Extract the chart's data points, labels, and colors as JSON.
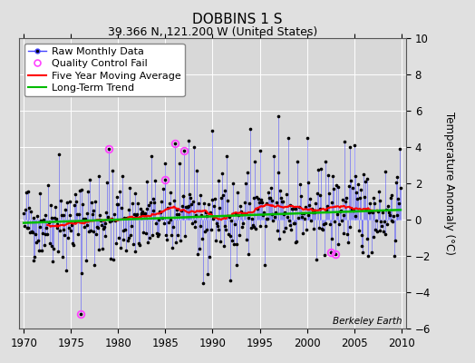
{
  "title": "DOBBINS 1 S",
  "subtitle": "39.366 N, 121.200 W (United States)",
  "ylabel": "Temperature Anomaly (°C)",
  "watermark": "Berkeley Earth",
  "xlim": [
    1969.5,
    2010.5
  ],
  "ylim": [
    -6,
    10
  ],
  "yticks": [
    -6,
    -4,
    -2,
    0,
    2,
    4,
    6,
    8,
    10
  ],
  "xticks": [
    1970,
    1975,
    1980,
    1985,
    1990,
    1995,
    2000,
    2005,
    2010
  ],
  "bg_color": "#e0e0e0",
  "plot_bg_color": "#d8d8d8",
  "raw_line_color": "#4444ff",
  "raw_dot_color": "#000000",
  "ma_color": "#ff0000",
  "trend_color": "#00bb00",
  "qc_fail_color": "#ff44ff",
  "seed": 42,
  "start_year": 1970,
  "end_year": 2010,
  "trend_slope": 0.018,
  "trend_intercept": -0.18,
  "title_fontsize": 11,
  "subtitle_fontsize": 9,
  "tick_fontsize": 8.5,
  "ylabel_fontsize": 8.5,
  "legend_fontsize": 8,
  "watermark_fontsize": 7.5
}
